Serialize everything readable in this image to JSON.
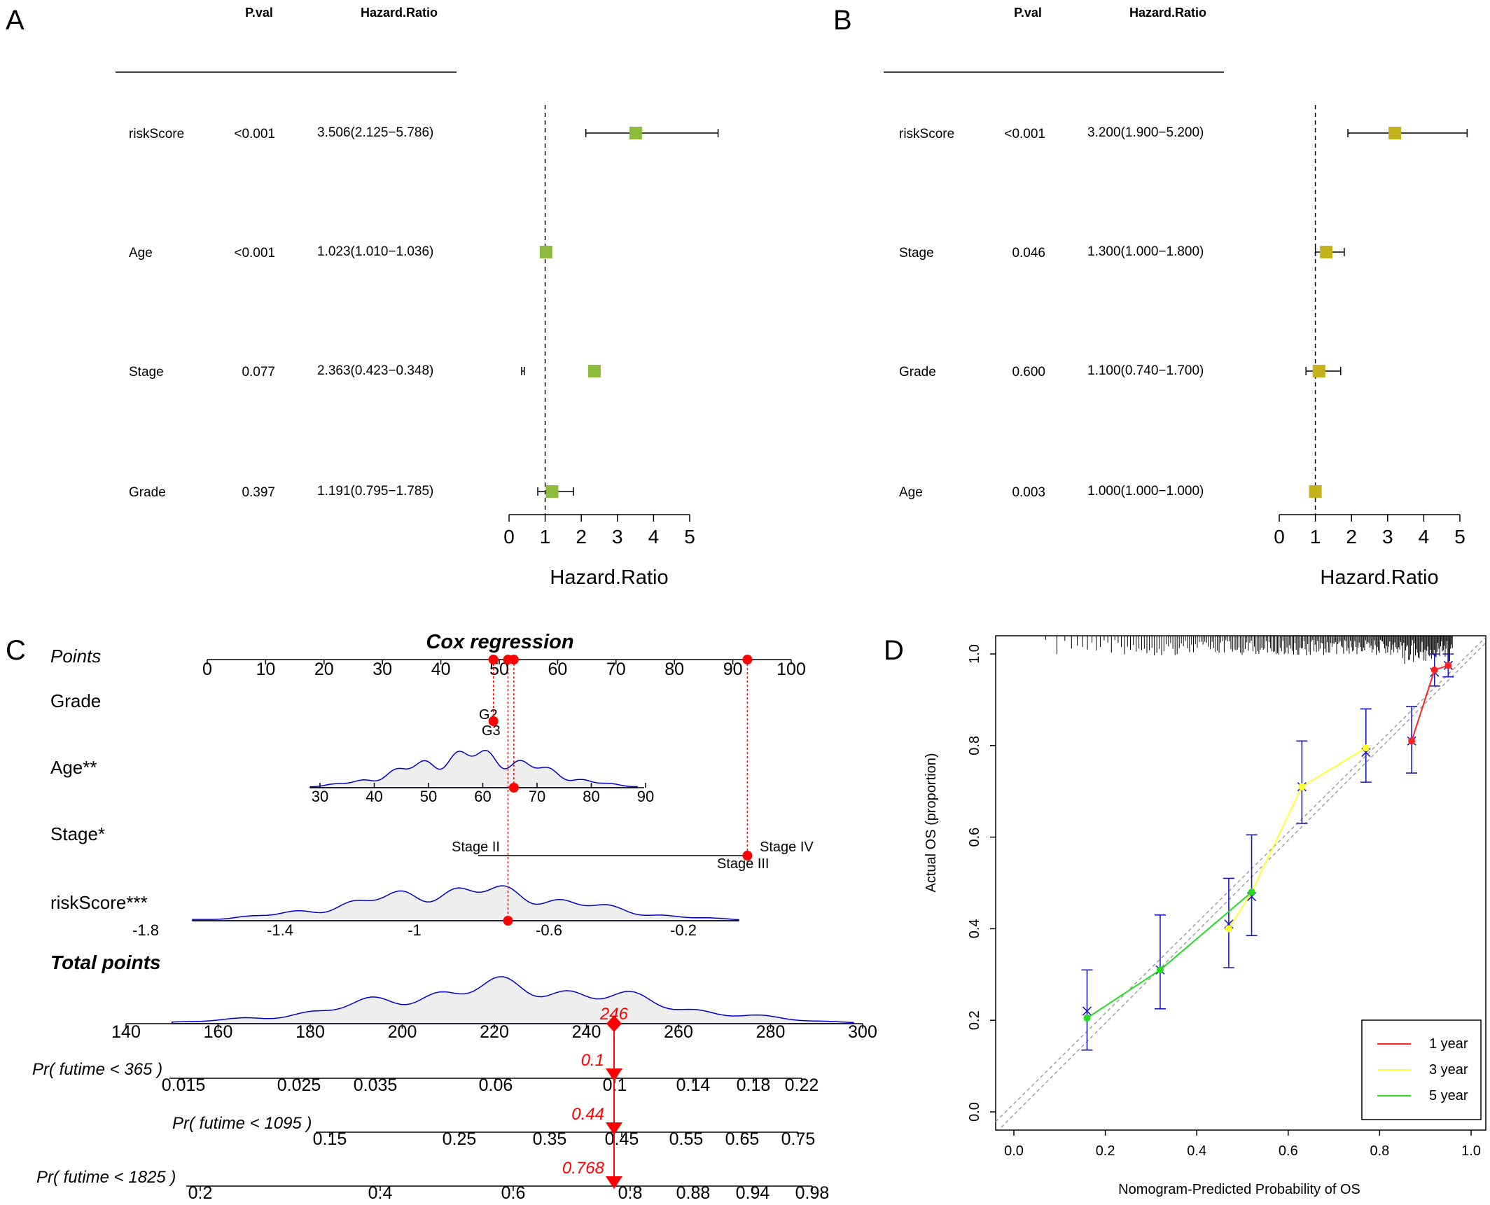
{
  "chart_data": [
    {
      "panel": "A",
      "type": "forest",
      "columns": [
        "P.val",
        "Hazard.Ratio"
      ],
      "rows": [
        {
          "label": "riskScore",
          "pval": "<0.001",
          "hr_text": "3.506(2.125−5.786)",
          "hr": 3.506,
          "lo": 2.125,
          "hi": 5.786
        },
        {
          "label": "Age",
          "pval": "<0.001",
          "hr_text": "1.023(1.010−1.036)",
          "hr": 1.023,
          "lo": 1.01,
          "hi": 1.036
        },
        {
          "label": "Stage",
          "pval": "0.077",
          "hr_text": "2.363(0.423−0.348)",
          "hr": 2.363,
          "lo": 0.348,
          "hi": 0.423
        },
        {
          "label": "Grade",
          "pval": "0.397",
          "hr_text": "1.191(0.795−1.785)",
          "hr": 1.191,
          "lo": 0.795,
          "hi": 1.785
        }
      ],
      "xlabel": "Hazard.Ratio",
      "xticks": [
        0,
        1,
        2,
        3,
        4,
        5
      ],
      "xlim": [
        0,
        5
      ],
      "ref_line": 1,
      "marker_color": "#8dbb3c"
    },
    {
      "panel": "B",
      "type": "forest",
      "columns": [
        "P.val",
        "Hazard.Ratio"
      ],
      "rows": [
        {
          "label": "riskScore",
          "pval": "<0.001",
          "hr_text": "3.200(1.900−5.200)",
          "hr": 3.2,
          "lo": 1.9,
          "hi": 5.2
        },
        {
          "label": "Stage",
          "pval": "0.046",
          "hr_text": "1.300(1.000−1.800)",
          "hr": 1.3,
          "lo": 1.0,
          "hi": 1.8
        },
        {
          "label": "Grade",
          "pval": "0.600",
          "hr_text": "1.100(0.740−1.700)",
          "hr": 1.1,
          "lo": 0.74,
          "hi": 1.7
        },
        {
          "label": "Age",
          "pval": "0.003",
          "hr_text": "1.000(1.000−1.000)",
          "hr": 1.0,
          "lo": 1.0,
          "hi": 1.0
        }
      ],
      "xlabel": "Hazard.Ratio",
      "xticks": [
        0,
        1,
        2,
        3,
        4,
        5
      ],
      "xlim": [
        0,
        5
      ],
      "ref_line": 1,
      "marker_color": "#c4b21c"
    },
    {
      "panel": "C",
      "type": "nomogram",
      "title": "Cox regression",
      "scales": [
        {
          "label": "Points",
          "bold_italic": false,
          "italic": true,
          "ticks": [
            "0",
            "10",
            "20",
            "30",
            "40",
            "50",
            "60",
            "70",
            "80",
            "90",
            "100"
          ],
          "range": [
            0,
            100
          ]
        },
        {
          "label": "Grade",
          "levels": [
            {
              "name": "G2",
              "points": 49
            },
            {
              "name": "G3",
              "points": 49
            }
          ]
        },
        {
          "label": "Age**",
          "ticks": [
            "30",
            "40",
            "50",
            "60",
            "70",
            "80",
            "90"
          ],
          "range": [
            30,
            90
          ],
          "points_range": [
            19,
            74.5
          ]
        },
        {
          "label": "Stage*",
          "levels": [
            {
              "name": "Stage II",
              "points": 46.5
            },
            {
              "name": "Stage III",
              "points": 92.5
            },
            {
              "name": "Stage IV",
              "points": 92.5
            }
          ]
        },
        {
          "label": "riskScore***",
          "ticks": [
            "-1.8",
            "-1.4",
            "-1",
            "-0.6",
            "-0.2"
          ],
          "values": [
            -1.8,
            -1.4,
            -1,
            -0.6,
            -0.2
          ]
        },
        {
          "label": "Total points",
          "bold_italic": true,
          "ticks": [
            "140",
            "160",
            "180",
            "200",
            "220",
            "240",
            "260",
            "280",
            "300"
          ],
          "range": [
            140,
            300
          ]
        },
        {
          "label": "Pr( futime < 365 )",
          "italic": true,
          "ticks": [
            "0.015",
            "0.025",
            "0.035",
            "0.06",
            "0.1",
            "0.14",
            "0.18",
            "0.22"
          ]
        },
        {
          "label": "Pr( futime < 1095 )",
          "italic": true,
          "ticks": [
            "0.15",
            "0.25",
            "0.35",
            "0.45",
            "0.55",
            "0.65",
            "0.75"
          ]
        },
        {
          "label": "Pr( futime < 1825 )",
          "italic": true,
          "ticks": [
            "0.2",
            "0.4",
            "0.6",
            "0.8",
            "0.88",
            "0.94",
            "0.98"
          ]
        }
      ],
      "patient": {
        "grade_points": 49,
        "age_value": 66,
        "age_points": 52.5,
        "stage_points": 92.5,
        "riskscore_points": 51.5,
        "total_points": "246",
        "total_value": 246,
        "pr365": "0.1",
        "pr1095": "0.44",
        "pr1825": "0.768"
      },
      "highlight_color": "#ff0000",
      "density_color": "#0000cc"
    },
    {
      "panel": "D",
      "type": "line",
      "xlabel": "Nomogram-Predicted Probability of OS",
      "ylabel": "Actual OS (proportion)",
      "xlim": [
        0,
        1
      ],
      "ylim": [
        0,
        1
      ],
      "xticks": [
        "0.0",
        "0.2",
        "0.4",
        "0.6",
        "0.8",
        "1.0"
      ],
      "yticks": [
        "0.0",
        "0.2",
        "0.4",
        "0.6",
        "0.8",
        "1.0"
      ],
      "legend_position": "bottom-right",
      "series": [
        {
          "name": "1 year",
          "color": "#ff2222",
          "points": [
            [
              0.87,
              0.81
            ],
            [
              0.92,
              0.965
            ],
            [
              0.95,
              0.975
            ]
          ]
        },
        {
          "name": "3 year",
          "color": "#ffff33",
          "points": [
            [
              0.47,
              0.4
            ],
            [
              0.52,
              0.48
            ],
            [
              0.63,
              0.71
            ],
            [
              0.77,
              0.795
            ]
          ]
        },
        {
          "name": "5 year",
          "color": "#22dd22",
          "points": [
            [
              0.16,
              0.205
            ],
            [
              0.32,
              0.31
            ],
            [
              0.52,
              0.48
            ]
          ]
        }
      ],
      "calibration_points": [
        {
          "x": 0.16,
          "y": 0.22,
          "lo": 0.135,
          "hi": 0.31
        },
        {
          "x": 0.32,
          "y": 0.31,
          "lo": 0.225,
          "hi": 0.43
        },
        {
          "x": 0.47,
          "y": 0.41,
          "lo": 0.315,
          "hi": 0.51
        },
        {
          "x": 0.52,
          "y": 0.47,
          "lo": 0.385,
          "hi": 0.605
        },
        {
          "x": 0.63,
          "y": 0.71,
          "lo": 0.63,
          "hi": 0.81
        },
        {
          "x": 0.77,
          "y": 0.785,
          "lo": 0.72,
          "hi": 0.88
        },
        {
          "x": 0.87,
          "y": 0.81,
          "lo": 0.74,
          "hi": 0.885
        },
        {
          "x": 0.92,
          "y": 0.96,
          "lo": 0.93,
          "hi": 1.0
        },
        {
          "x": 0.95,
          "y": 0.975,
          "lo": 0.95,
          "hi": 1.0
        }
      ],
      "errorbar_color": "#1a1abf"
    }
  ],
  "panel_labels": [
    "A",
    "B",
    "C",
    "D"
  ]
}
